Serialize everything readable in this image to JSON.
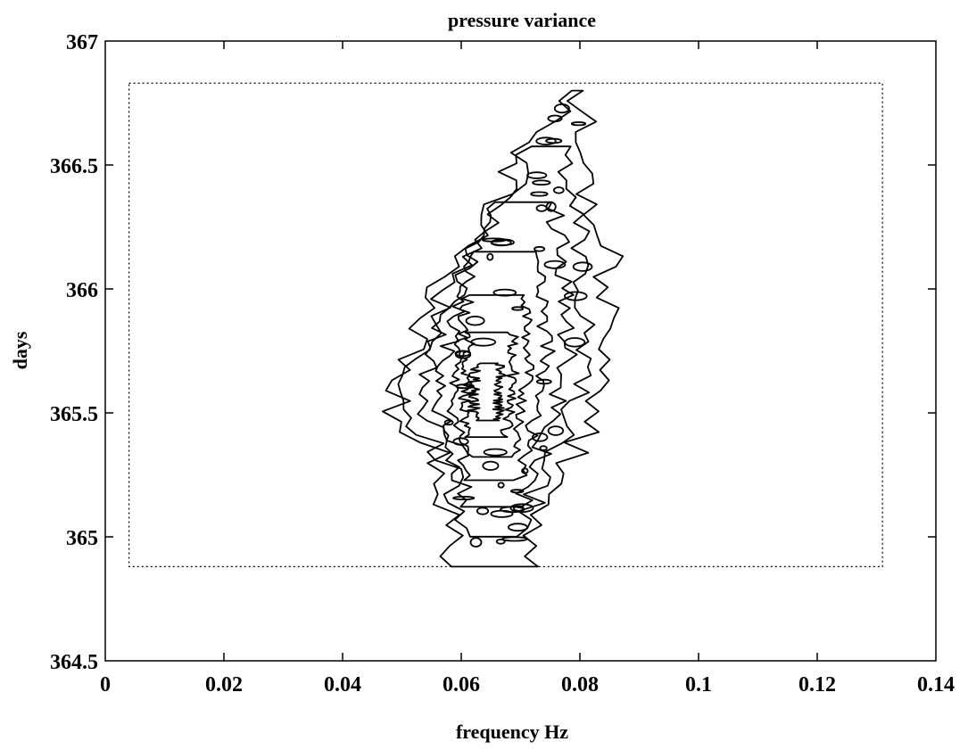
{
  "chart_data": {
    "type": "contour",
    "title": "pressure variance",
    "xlabel": "frequency Hz",
    "ylabel": "days",
    "xlim": [
      0,
      0.14
    ],
    "ylim": [
      364.5,
      367
    ],
    "xticks": [
      0,
      0.02,
      0.04,
      0.06,
      0.08,
      0.1,
      0.12,
      0.14
    ],
    "xtick_labels": [
      "0",
      "0.02",
      "0.04",
      "0.06",
      "0.08",
      "0.1",
      "0.12",
      "0.14"
    ],
    "yticks": [
      364.5,
      365,
      365.5,
      366,
      366.5,
      367
    ],
    "ytick_labels": [
      "364.5",
      "365",
      "365.5",
      "366",
      "366.5",
      "367"
    ],
    "grid": false,
    "data_region_box": {
      "x": [
        0.004,
        0.131
      ],
      "y": [
        364.88,
        366.83
      ]
    },
    "energy_envelope": {
      "days": [
        364.88,
        365.1,
        365.3,
        365.5,
        365.7,
        365.9,
        366.1,
        366.3,
        366.5,
        366.7,
        366.8
      ],
      "freq_min": [
        0.058,
        0.058,
        0.057,
        0.048,
        0.05,
        0.054,
        0.059,
        0.065,
        0.07,
        0.075,
        0.079
      ],
      "freq_max": [
        0.073,
        0.073,
        0.078,
        0.082,
        0.086,
        0.085,
        0.085,
        0.082,
        0.079,
        0.082,
        0.08
      ]
    },
    "peak": {
      "frequency": 0.064,
      "days": 365.55
    }
  }
}
